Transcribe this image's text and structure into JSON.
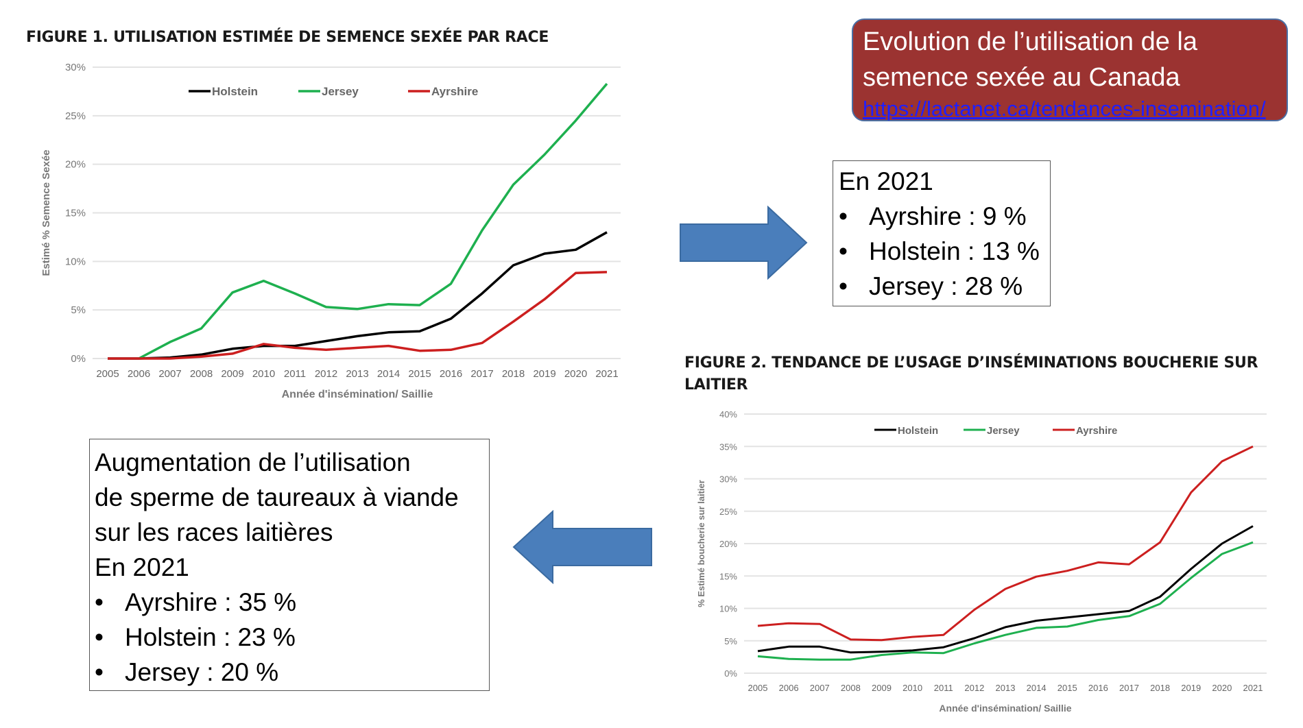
{
  "info_box": {
    "title_line1": "Evolution de l’utilisation de la",
    "title_line2": "semence sexée au Canada",
    "link": "https://lactanet.ca/tendances-insemination/"
  },
  "summary_2021": {
    "heading": "En 2021",
    "items": [
      "Ayrshire :  9 %",
      "Holstein : 13 %",
      "Jersey : 28 %"
    ]
  },
  "summary_beef": {
    "line1": "Augmentation de l’utilisation",
    "line2": "de sperme de taureaux à viande",
    "line3": "sur les races laitières",
    "heading": "En 2021",
    "items": [
      "Ayrshire :  35 %",
      "Holstein : 23 %",
      "Jersey : 20 %"
    ]
  },
  "bullet": "•",
  "chart_data": [
    {
      "type": "line",
      "title": "FIGURE 1. UTILISATION ESTIMÉE DE SEMENCE SEXÉE PAR RACE",
      "xlabel": "Année d'insémination/ Saillie",
      "ylabel": "Estimé % Semence Sexée",
      "ylim": [
        0,
        30
      ],
      "yticks": [
        "0%",
        "5%",
        "10%",
        "15%",
        "20%",
        "25%",
        "30%"
      ],
      "categories": [
        "2005",
        "2006",
        "2007",
        "2008",
        "2009",
        "2010",
        "2011",
        "2012",
        "2013",
        "2014",
        "2015",
        "2016",
        "2017",
        "2018",
        "2019",
        "2020",
        "2021"
      ],
      "legend": "top-center",
      "grid": true,
      "series": [
        {
          "name": "Holstein",
          "color": "#000000",
          "values": [
            0,
            0,
            0.1,
            0.4,
            1.0,
            1.3,
            1.3,
            1.8,
            2.3,
            2.7,
            2.8,
            4.1,
            6.7,
            9.6,
            10.8,
            11.2,
            13.0
          ]
        },
        {
          "name": "Jersey",
          "color": "#1eb04f",
          "values": [
            null,
            0,
            1.7,
            3.1,
            6.8,
            8.0,
            6.7,
            5.3,
            5.1,
            5.6,
            5.5,
            7.7,
            13.2,
            17.9,
            21.0,
            24.5,
            28.3
          ]
        },
        {
          "name": "Ayrshire",
          "color": "#cc1f1f",
          "values": [
            0,
            0,
            0,
            0.2,
            0.5,
            1.5,
            1.1,
            0.9,
            1.1,
            1.3,
            0.8,
            0.9,
            1.6,
            3.8,
            6.1,
            8.8,
            8.9
          ]
        }
      ]
    },
    {
      "type": "line",
      "title": "FIGURE 2. TENDANCE DE L’USAGE D’INSÉMINATIONS BOUCHERIE SUR LAITIER",
      "xlabel": "Année d'insémination/ Saillie",
      "ylabel": "% Estimé boucherie sur laitier",
      "ylim": [
        0,
        40
      ],
      "yticks": [
        "0%",
        "5%",
        "10%",
        "15%",
        "20%",
        "25%",
        "30%",
        "35%",
        "40%"
      ],
      "categories": [
        "2005",
        "2006",
        "2007",
        "2008",
        "2009",
        "2010",
        "2011",
        "2012",
        "2013",
        "2014",
        "2015",
        "2016",
        "2017",
        "2018",
        "2019",
        "2020",
        "2021"
      ],
      "legend": "top-center",
      "grid": true,
      "series": [
        {
          "name": "Holstein",
          "color": "#000000",
          "values": [
            3.4,
            4.1,
            4.1,
            3.2,
            3.3,
            3.5,
            4.0,
            5.4,
            7.1,
            8.1,
            8.6,
            9.1,
            9.6,
            11.8,
            16.1,
            20.0,
            22.7
          ]
        },
        {
          "name": "Jersey",
          "color": "#1eb04f",
          "values": [
            2.6,
            2.2,
            2.1,
            2.1,
            2.8,
            3.2,
            3.1,
            4.6,
            5.9,
            7.0,
            7.2,
            8.2,
            8.8,
            10.7,
            14.7,
            18.4,
            20.2
          ]
        },
        {
          "name": "Ayrshire",
          "color": "#cc1f1f",
          "values": [
            7.3,
            7.7,
            7.6,
            5.2,
            5.1,
            5.6,
            5.9,
            9.8,
            13.0,
            14.9,
            15.8,
            17.1,
            16.8,
            20.2,
            27.9,
            32.7,
            35.0
          ]
        }
      ]
    }
  ]
}
